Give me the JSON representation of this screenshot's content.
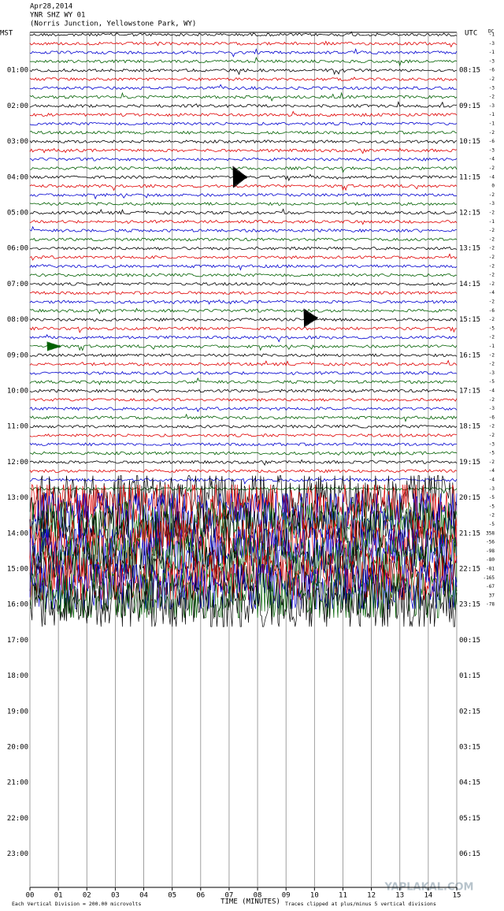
{
  "header": {
    "date": "Apr28,2014",
    "station": "YNR SHZ WY 01",
    "location": "(Norris Junction, Yellowstone Park, WY)"
  },
  "left_label": "MST",
  "right_label": "UTC",
  "dc_label": "DC",
  "mst_hours": [
    "01:00",
    "02:00",
    "03:00",
    "04:00",
    "05:00",
    "06:00",
    "07:00",
    "08:00",
    "09:00",
    "10:00",
    "11:00",
    "12:00",
    "13:00",
    "14:00",
    "15:00",
    "16:00",
    "17:00",
    "18:00",
    "19:00",
    "20:00",
    "21:00",
    "22:00",
    "23:00"
  ],
  "utc_hours": [
    "08:15",
    "09:15",
    "10:15",
    "11:15",
    "12:15",
    "13:15",
    "14:15",
    "15:15",
    "16:15",
    "17:15",
    "18:15",
    "19:15",
    "20:15",
    "21:15",
    "22:15",
    "23:15",
    "00:15",
    "01:15",
    "02:15",
    "03:15",
    "04:15",
    "05:15",
    "06:15"
  ],
  "dc_offsets": [
    -1,
    -3,
    -1,
    -3,
    -6,
    -2,
    -3,
    -2,
    -3,
    -1,
    -1,
    -2,
    -6,
    -3,
    -4,
    -2,
    -4,
    0,
    -2,
    -3,
    -2,
    -1,
    -2,
    -2,
    -2,
    -2,
    -2,
    -2,
    -2,
    -4,
    -2,
    -6,
    -2,
    -5,
    -2,
    -1,
    -2,
    -2,
    -3,
    -5,
    -4,
    -2,
    -3,
    -6,
    -2,
    -2,
    -3,
    -5,
    -2,
    -4,
    -4,
    -3,
    -5,
    -5,
    -2,
    -5,
    358,
    -56,
    -98,
    -80,
    -81,
    -165,
    -67,
    37,
    -78
  ],
  "minutes": [
    "00",
    "01",
    "02",
    "03",
    "04",
    "05",
    "06",
    "07",
    "08",
    "09",
    "10",
    "11",
    "12",
    "13",
    "14",
    "15"
  ],
  "x_axis_label": "TIME (MINUTES)",
  "footer_left": "Each Vertical Division = 200.00 microvolts",
  "footer_right": "Traces clipped at plus/minus 5 vertical divisions",
  "watermark": "YAPLAKAL.COM"
}
